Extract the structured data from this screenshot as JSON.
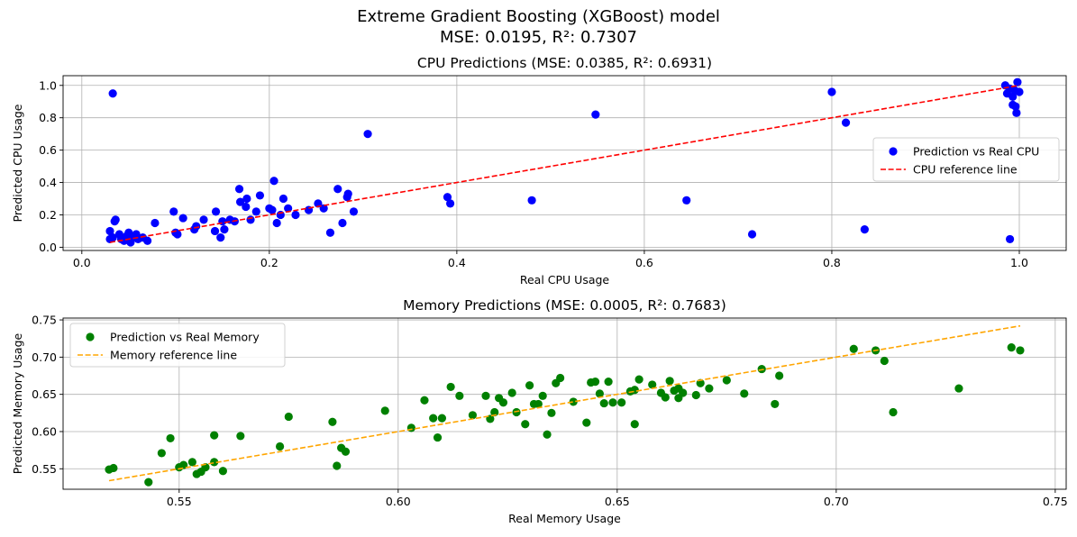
{
  "figure": {
    "title_line1": "Extreme Gradient Boosting (XGBoost) model",
    "title_line2": "MSE: 0.0195, R²: 0.7307"
  },
  "chart_data": [
    {
      "type": "scatter",
      "title": "CPU Predictions (MSE: 0.0385, R²: 0.6931)",
      "xlabel": "Real CPU Usage",
      "ylabel": "Predicted CPU Usage",
      "xlim": [
        -0.02,
        1.05
      ],
      "ylim": [
        -0.02,
        1.06
      ],
      "xticks": [
        0.0,
        0.2,
        0.4,
        0.6,
        0.8,
        1.0
      ],
      "xtick_labels": [
        "0.0",
        "0.2",
        "0.4",
        "0.6",
        "0.8",
        "1.0"
      ],
      "yticks": [
        0.0,
        0.2,
        0.4,
        0.6,
        0.8,
        1.0
      ],
      "ytick_labels": [
        "0.0",
        "0.2",
        "0.4",
        "0.6",
        "0.8",
        "1.0"
      ],
      "grid": true,
      "legend_position": "center-right",
      "series": [
        {
          "name": "Prediction vs Real CPU",
          "kind": "scatter",
          "color": "#0000ff",
          "points": [
            [
              0.033,
              0.95
            ],
            [
              0.03,
              0.05
            ],
            [
              0.03,
              0.1
            ],
            [
              0.033,
              0.06
            ],
            [
              0.035,
              0.16
            ],
            [
              0.036,
              0.17
            ],
            [
              0.04,
              0.08
            ],
            [
              0.042,
              0.05
            ],
            [
              0.045,
              0.04
            ],
            [
              0.048,
              0.07
            ],
            [
              0.05,
              0.09
            ],
            [
              0.052,
              0.03
            ],
            [
              0.055,
              0.06
            ],
            [
              0.058,
              0.08
            ],
            [
              0.06,
              0.05
            ],
            [
              0.065,
              0.06
            ],
            [
              0.07,
              0.04
            ],
            [
              0.078,
              0.15
            ],
            [
              0.098,
              0.22
            ],
            [
              0.1,
              0.09
            ],
            [
              0.102,
              0.08
            ],
            [
              0.108,
              0.18
            ],
            [
              0.12,
              0.11
            ],
            [
              0.122,
              0.13
            ],
            [
              0.13,
              0.17
            ],
            [
              0.142,
              0.1
            ],
            [
              0.143,
              0.22
            ],
            [
              0.148,
              0.06
            ],
            [
              0.15,
              0.16
            ],
            [
              0.152,
              0.11
            ],
            [
              0.158,
              0.17
            ],
            [
              0.163,
              0.16
            ],
            [
              0.168,
              0.36
            ],
            [
              0.169,
              0.28
            ],
            [
              0.175,
              0.25
            ],
            [
              0.176,
              0.3
            ],
            [
              0.18,
              0.17
            ],
            [
              0.186,
              0.22
            ],
            [
              0.19,
              0.32
            ],
            [
              0.2,
              0.24
            ],
            [
              0.203,
              0.23
            ],
            [
              0.205,
              0.41
            ],
            [
              0.208,
              0.15
            ],
            [
              0.212,
              0.2
            ],
            [
              0.215,
              0.3
            ],
            [
              0.22,
              0.24
            ],
            [
              0.228,
              0.2
            ],
            [
              0.242,
              0.23
            ],
            [
              0.252,
              0.27
            ],
            [
              0.258,
              0.24
            ],
            [
              0.265,
              0.09
            ],
            [
              0.273,
              0.36
            ],
            [
              0.278,
              0.15
            ],
            [
              0.283,
              0.31
            ],
            [
              0.284,
              0.33
            ],
            [
              0.29,
              0.22
            ],
            [
              0.305,
              0.7
            ],
            [
              0.39,
              0.31
            ],
            [
              0.393,
              0.27
            ],
            [
              0.48,
              0.29
            ],
            [
              0.548,
              0.82
            ],
            [
              0.645,
              0.29
            ],
            [
              0.715,
              0.08
            ],
            [
              0.8,
              0.96
            ],
            [
              0.815,
              0.77
            ],
            [
              0.835,
              0.11
            ],
            [
              0.985,
              1.0
            ],
            [
              0.987,
              0.95
            ],
            [
              0.99,
              0.98
            ],
            [
              0.99,
              0.05
            ],
            [
              0.993,
              0.93
            ],
            [
              0.995,
              0.97
            ],
            [
              0.996,
              0.87
            ],
            [
              0.997,
              0.83
            ],
            [
              0.998,
              1.02
            ],
            [
              1.0,
              0.96
            ],
            [
              0.993,
              0.88
            ]
          ]
        },
        {
          "name": "CPU reference line",
          "kind": "line",
          "style": "dashed",
          "color": "#ff0000",
          "points": [
            [
              0.03,
              0.03
            ],
            [
              1.0,
              1.0
            ]
          ]
        }
      ]
    },
    {
      "type": "scatter",
      "title": "Memory Predictions (MSE: 0.0005, R²: 0.7683)",
      "xlabel": "Real Memory Usage",
      "ylabel": "Predicted Memory Usage",
      "xlim": [
        0.5235,
        0.7525
      ],
      "ylim": [
        0.5225,
        0.7525
      ],
      "xticks": [
        0.55,
        0.6,
        0.65,
        0.7,
        0.75
      ],
      "xtick_labels": [
        "0.55",
        "0.60",
        "0.65",
        "0.70",
        "0.75"
      ],
      "yticks": [
        0.55,
        0.6,
        0.65,
        0.7,
        0.75
      ],
      "ytick_labels": [
        "0.55",
        "0.60",
        "0.65",
        "0.70",
        "0.75"
      ],
      "grid": true,
      "legend_position": "upper-left",
      "series": [
        {
          "name": "Prediction vs Real Memory",
          "kind": "scatter",
          "color": "#008000",
          "points": [
            [
              0.534,
              0.549
            ],
            [
              0.535,
              0.551
            ],
            [
              0.543,
              0.532
            ],
            [
              0.546,
              0.571
            ],
            [
              0.548,
              0.591
            ],
            [
              0.55,
              0.552
            ],
            [
              0.551,
              0.555
            ],
            [
              0.553,
              0.559
            ],
            [
              0.554,
              0.543
            ],
            [
              0.555,
              0.546
            ],
            [
              0.556,
              0.552
            ],
            [
              0.558,
              0.595
            ],
            [
              0.558,
              0.559
            ],
            [
              0.56,
              0.547
            ],
            [
              0.564,
              0.594
            ],
            [
              0.573,
              0.58
            ],
            [
              0.575,
              0.62
            ],
            [
              0.585,
              0.613
            ],
            [
              0.586,
              0.554
            ],
            [
              0.587,
              0.578
            ],
            [
              0.588,
              0.573
            ],
            [
              0.597,
              0.628
            ],
            [
              0.603,
              0.605
            ],
            [
              0.606,
              0.642
            ],
            [
              0.608,
              0.618
            ],
            [
              0.609,
              0.592
            ],
            [
              0.61,
              0.618
            ],
            [
              0.612,
              0.66
            ],
            [
              0.614,
              0.648
            ],
            [
              0.617,
              0.622
            ],
            [
              0.62,
              0.648
            ],
            [
              0.621,
              0.617
            ],
            [
              0.622,
              0.626
            ],
            [
              0.623,
              0.645
            ],
            [
              0.624,
              0.639
            ],
            [
              0.626,
              0.652
            ],
            [
              0.627,
              0.626
            ],
            [
              0.629,
              0.61
            ],
            [
              0.63,
              0.662
            ],
            [
              0.631,
              0.637
            ],
            [
              0.632,
              0.637
            ],
            [
              0.633,
              0.648
            ],
            [
              0.634,
              0.596
            ],
            [
              0.635,
              0.625
            ],
            [
              0.636,
              0.665
            ],
            [
              0.637,
              0.672
            ],
            [
              0.64,
              0.64
            ],
            [
              0.643,
              0.612
            ],
            [
              0.644,
              0.666
            ],
            [
              0.645,
              0.667
            ],
            [
              0.646,
              0.651
            ],
            [
              0.647,
              0.638
            ],
            [
              0.648,
              0.667
            ],
            [
              0.649,
              0.639
            ],
            [
              0.651,
              0.639
            ],
            [
              0.653,
              0.654
            ],
            [
              0.654,
              0.656
            ],
            [
              0.654,
              0.61
            ],
            [
              0.655,
              0.67
            ],
            [
              0.658,
              0.663
            ],
            [
              0.66,
              0.652
            ],
            [
              0.661,
              0.646
            ],
            [
              0.662,
              0.668
            ],
            [
              0.663,
              0.655
            ],
            [
              0.664,
              0.645
            ],
            [
              0.664,
              0.658
            ],
            [
              0.665,
              0.652
            ],
            [
              0.668,
              0.649
            ],
            [
              0.669,
              0.665
            ],
            [
              0.671,
              0.658
            ],
            [
              0.675,
              0.669
            ],
            [
              0.679,
              0.651
            ],
            [
              0.683,
              0.684
            ],
            [
              0.686,
              0.637
            ],
            [
              0.687,
              0.675
            ],
            [
              0.704,
              0.711
            ],
            [
              0.709,
              0.709
            ],
            [
              0.711,
              0.695
            ],
            [
              0.713,
              0.626
            ],
            [
              0.728,
              0.658
            ],
            [
              0.74,
              0.713
            ],
            [
              0.742,
              0.709
            ]
          ]
        },
        {
          "name": "Memory reference line",
          "kind": "line",
          "style": "dashed",
          "color": "#ffa500",
          "points": [
            [
              0.534,
              0.534
            ],
            [
              0.742,
              0.742
            ]
          ]
        }
      ]
    }
  ]
}
